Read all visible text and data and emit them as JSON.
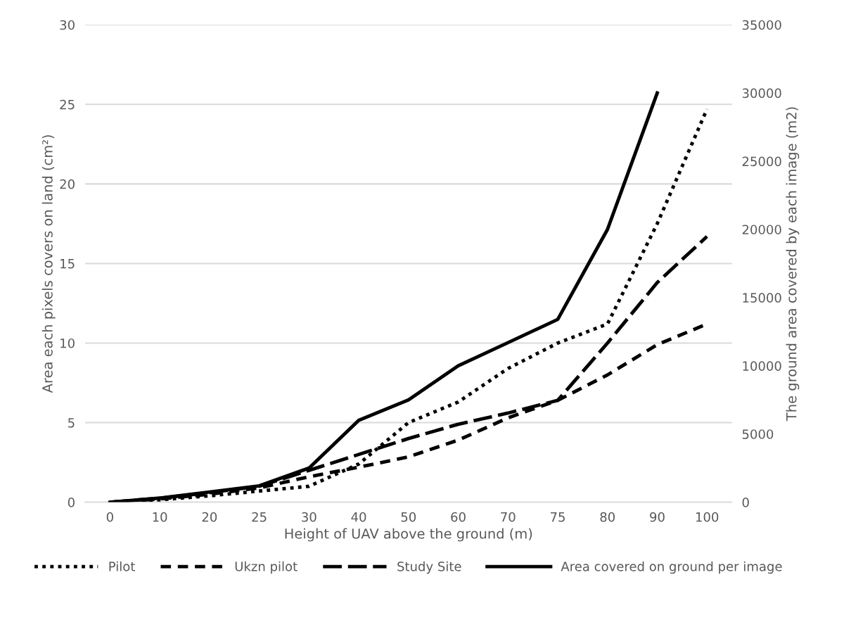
{
  "chart_data": {
    "type": "line",
    "xlabel": "Height of UAV above the ground (m)",
    "ylabel": "Area each pixels covers on land (cm²)",
    "y2label": "The ground area covered by each image (m2)",
    "categories": [
      "0",
      "10",
      "20",
      "25",
      "30",
      "40",
      "50",
      "60",
      "70",
      "75",
      "80",
      "90",
      "100"
    ],
    "series": [
      {
        "name": "Pilot",
        "color": "#000000",
        "line_style": "dotted",
        "values": [
          0,
          0.15,
          0.4,
          0.7,
          1.0,
          2.4,
          5.0,
          6.3,
          8.4,
          10.0,
          11.2,
          17.5,
          24.7
        ]
      },
      {
        "name": "Ukzn pilot",
        "color": "#000000",
        "line_style": "dashed",
        "values": [
          0,
          0.2,
          0.5,
          0.9,
          1.6,
          2.2,
          2.85,
          3.9,
          5.3,
          6.4,
          8.0,
          9.9,
          11.2
        ]
      },
      {
        "name": "Study Site",
        "color": "#000000",
        "line_style": "long dashed",
        "values": [
          0,
          0.25,
          0.6,
          1.0,
          2.0,
          3.0,
          4.0,
          4.9,
          5.6,
          6.4,
          10.0,
          13.8,
          16.7
        ]
      },
      {
        "name": "Area covered on ground per image",
        "color": "#000000",
        "line_style": "solid",
        "axis": "y2",
        "values": [
          0,
          300,
          750,
          1200,
          2500,
          6000,
          7500,
          10000,
          11700,
          13400,
          20000,
          30000,
          null
        ]
      }
    ],
    "ylim": [
      0,
      30
    ],
    "yticks": [
      0,
      5,
      10,
      15,
      20,
      25,
      30
    ],
    "y2lim": [
      0,
      35000
    ],
    "y2ticks": [
      0,
      5000,
      10000,
      15000,
      20000,
      25000,
      30000,
      35000
    ],
    "grid": "y",
    "legend": "bottom",
    "marker": "none"
  }
}
